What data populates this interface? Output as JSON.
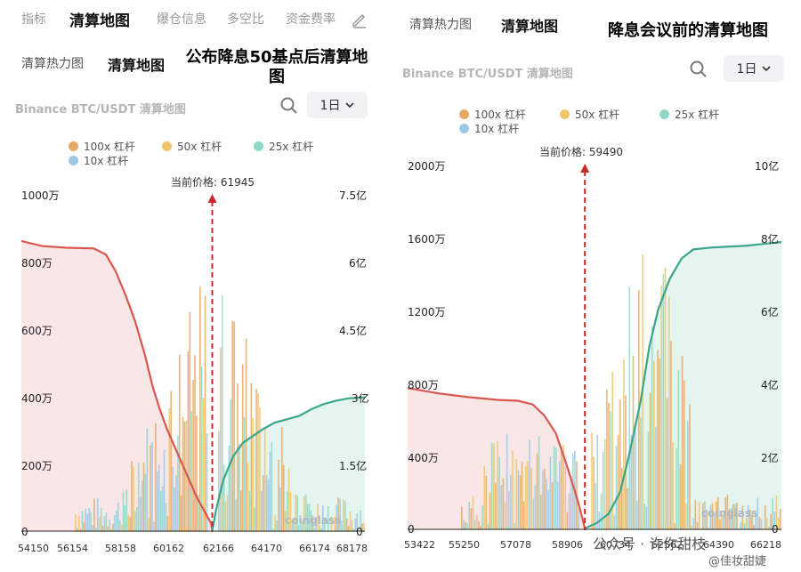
{
  "left": {
    "tabs": [
      {
        "label": "指标",
        "active": false
      },
      {
        "label": "清算地图",
        "active": true
      },
      {
        "label": "爆仓信息",
        "active": false
      },
      {
        "label": "多空比",
        "active": false
      },
      {
        "label": "资金费率",
        "active": false
      }
    ],
    "edit_icon": "pencil-icon",
    "subtabs": [
      {
        "label": "清算热力图",
        "active": false
      },
      {
        "label": "清算地图",
        "active": true
      }
    ],
    "headline": "公布降息50基点后清算地图",
    "pair_title": "Binance BTC/USDT 清算地图",
    "timeframe": "1日",
    "legend": [
      {
        "label": "100x 杠杆",
        "color": "#e8a862"
      },
      {
        "label": "50x 杠杆",
        "color": "#f0c46a"
      },
      {
        "label": "25x 杠杆",
        "color": "#8fd8c8"
      },
      {
        "label": "10x 杠杆",
        "color": "#9cc8e8"
      }
    ],
    "current_price_label": "当前价格: 61945",
    "watermark": "coinglass",
    "chart_data": {
      "type": "bar",
      "y_left_ticks": [
        "0",
        "200万",
        "400万",
        "600万",
        "800万",
        "1000万"
      ],
      "y_right_ticks": [
        "0",
        "1.5亿",
        "3亿",
        "4.5亿",
        "6亿",
        "7.5亿"
      ],
      "x_ticks": [
        "54150",
        "56154",
        "58158",
        "60162",
        "62166",
        "64170",
        "66174",
        "68178"
      ],
      "x_range": [
        54150,
        68178
      ],
      "y_left_range": [
        0,
        10000000
      ],
      "y_right_range": [
        0,
        750000000
      ],
      "current_price": 61945,
      "cumulative_short_curve": [
        [
          54150,
          860
        ],
        [
          55000,
          845
        ],
        [
          56000,
          840
        ],
        [
          57100,
          838
        ],
        [
          57600,
          820
        ],
        [
          58000,
          770
        ],
        [
          58400,
          700
        ],
        [
          58800,
          620
        ],
        [
          59200,
          520
        ],
        [
          59500,
          430
        ],
        [
          59800,
          360
        ],
        [
          60100,
          300
        ],
        [
          60400,
          250
        ],
        [
          60700,
          200
        ],
        [
          61000,
          150
        ],
        [
          61300,
          100
        ],
        [
          61600,
          60
        ],
        [
          61900,
          20
        ],
        [
          61945,
          0
        ]
      ],
      "cumulative_long_curve": [
        [
          61945,
          0
        ],
        [
          62100,
          60
        ],
        [
          62400,
          150
        ],
        [
          62800,
          220
        ],
        [
          63200,
          260
        ],
        [
          63600,
          280
        ],
        [
          64000,
          300
        ],
        [
          64500,
          320
        ],
        [
          65000,
          330
        ],
        [
          65500,
          340
        ],
        [
          66000,
          360
        ],
        [
          66500,
          375
        ],
        [
          67000,
          385
        ],
        [
          67500,
          392
        ],
        [
          68178,
          395
        ]
      ]
    }
  },
  "right": {
    "subtabs": [
      {
        "label": "清算热力图",
        "active": false
      },
      {
        "label": "清算地图",
        "active": true
      }
    ],
    "headline": "降息会议前的清算地图",
    "pair_title": "Binance BTC/USDT 清算地图",
    "timeframe": "1日",
    "legend": [
      {
        "label": "100x 杠杆",
        "color": "#e8a862"
      },
      {
        "label": "50x 杠杆",
        "color": "#f0c46a"
      },
      {
        "label": "25x 杠杆",
        "color": "#8fd8c8"
      },
      {
        "label": "10x 杠杆",
        "color": "#9cc8e8"
      }
    ],
    "current_price_label": "当前价格: 59490",
    "watermark": "coinglass",
    "footer_watermark": "公众号 · 许你甜枝",
    "corner_watermark": "@佳妆甜婕",
    "chart_data": {
      "type": "bar",
      "y_left_ticks": [
        "0",
        "400万",
        "800万",
        "1200万",
        "1600万",
        "2000万"
      ],
      "y_right_ticks": [
        "0",
        "2亿",
        "4亿",
        "6亿",
        "8亿",
        "10亿"
      ],
      "x_ticks": [
        "53422",
        "55250",
        "57078",
        "58906",
        "60734",
        "62562",
        "64390",
        "66218"
      ],
      "x_range": [
        53422,
        66218
      ],
      "y_left_range": [
        0,
        20000000
      ],
      "y_right_range": [
        0,
        1000000000
      ],
      "current_price": 59490,
      "cumulative_short_curve": [
        [
          53422,
          770
        ],
        [
          54500,
          740
        ],
        [
          55500,
          720
        ],
        [
          56500,
          705
        ],
        [
          57200,
          700
        ],
        [
          57700,
          680
        ],
        [
          58100,
          620
        ],
        [
          58500,
          520
        ],
        [
          58800,
          380
        ],
        [
          59100,
          230
        ],
        [
          59300,
          120
        ],
        [
          59490,
          0
        ]
      ],
      "cumulative_long_curve": [
        [
          59490,
          0
        ],
        [
          59900,
          30
        ],
        [
          60300,
          80
        ],
        [
          60700,
          200
        ],
        [
          61000,
          400
        ],
        [
          61400,
          700
        ],
        [
          61700,
          1000
        ],
        [
          62000,
          1200
        ],
        [
          62400,
          1370
        ],
        [
          62800,
          1480
        ],
        [
          63200,
          1530
        ],
        [
          63800,
          1540
        ],
        [
          64400,
          1545
        ],
        [
          65000,
          1550
        ],
        [
          65600,
          1560
        ],
        [
          66218,
          1570
        ]
      ]
    }
  }
}
